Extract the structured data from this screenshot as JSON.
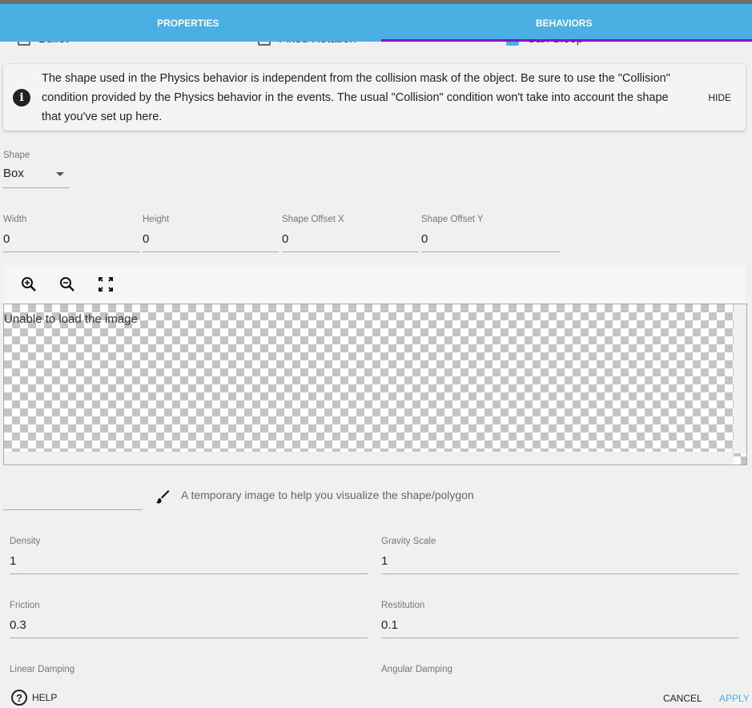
{
  "tabs": [
    {
      "label": "PROPERTIES"
    },
    {
      "label": "BEHAVIORS"
    }
  ],
  "checkboxes": [
    {
      "label": "Bullet",
      "checked": false
    },
    {
      "label": "Fixed Rotation",
      "checked": false
    },
    {
      "label": "Can Sleep",
      "checked": true
    }
  ],
  "alert": {
    "message": "The shape used in the Physics behavior is independent from the collision mask of the object. Be sure to use the \"Collision\" condition provided by the Physics behavior in the events. The usual \"Collision\" condition won't take into account the shape that you've set up here.",
    "hide_label": "HIDE"
  },
  "shape": {
    "label": "Shape",
    "value": "Box"
  },
  "dimensions": [
    {
      "label": "Width",
      "value": "0"
    },
    {
      "label": "Height",
      "value": "0"
    },
    {
      "label": "Shape Offset X",
      "value": "0"
    },
    {
      "label": "Shape Offset Y",
      "value": "0"
    }
  ],
  "preview": {
    "error_text": "Unable to load the image"
  },
  "image_field": {
    "value": "",
    "helper": "A temporary image to help you visualize the shape/polygon"
  },
  "physics": [
    {
      "label": "Density",
      "value": "1"
    },
    {
      "label": "Gravity Scale",
      "value": "1"
    },
    {
      "label": "Friction",
      "value": "0.3"
    },
    {
      "label": "Restitution",
      "value": "0.1"
    },
    {
      "label": "Linear Damping",
      "value": ""
    },
    {
      "label": "Angular Damping",
      "value": ""
    }
  ],
  "footer": {
    "help": "HELP",
    "cancel": "CANCEL",
    "apply": "APPLY"
  },
  "colors": {
    "tab_bar": "#4ab0e3",
    "tab_indicator": "#9100d4",
    "apply": "#4ab0e3"
  }
}
